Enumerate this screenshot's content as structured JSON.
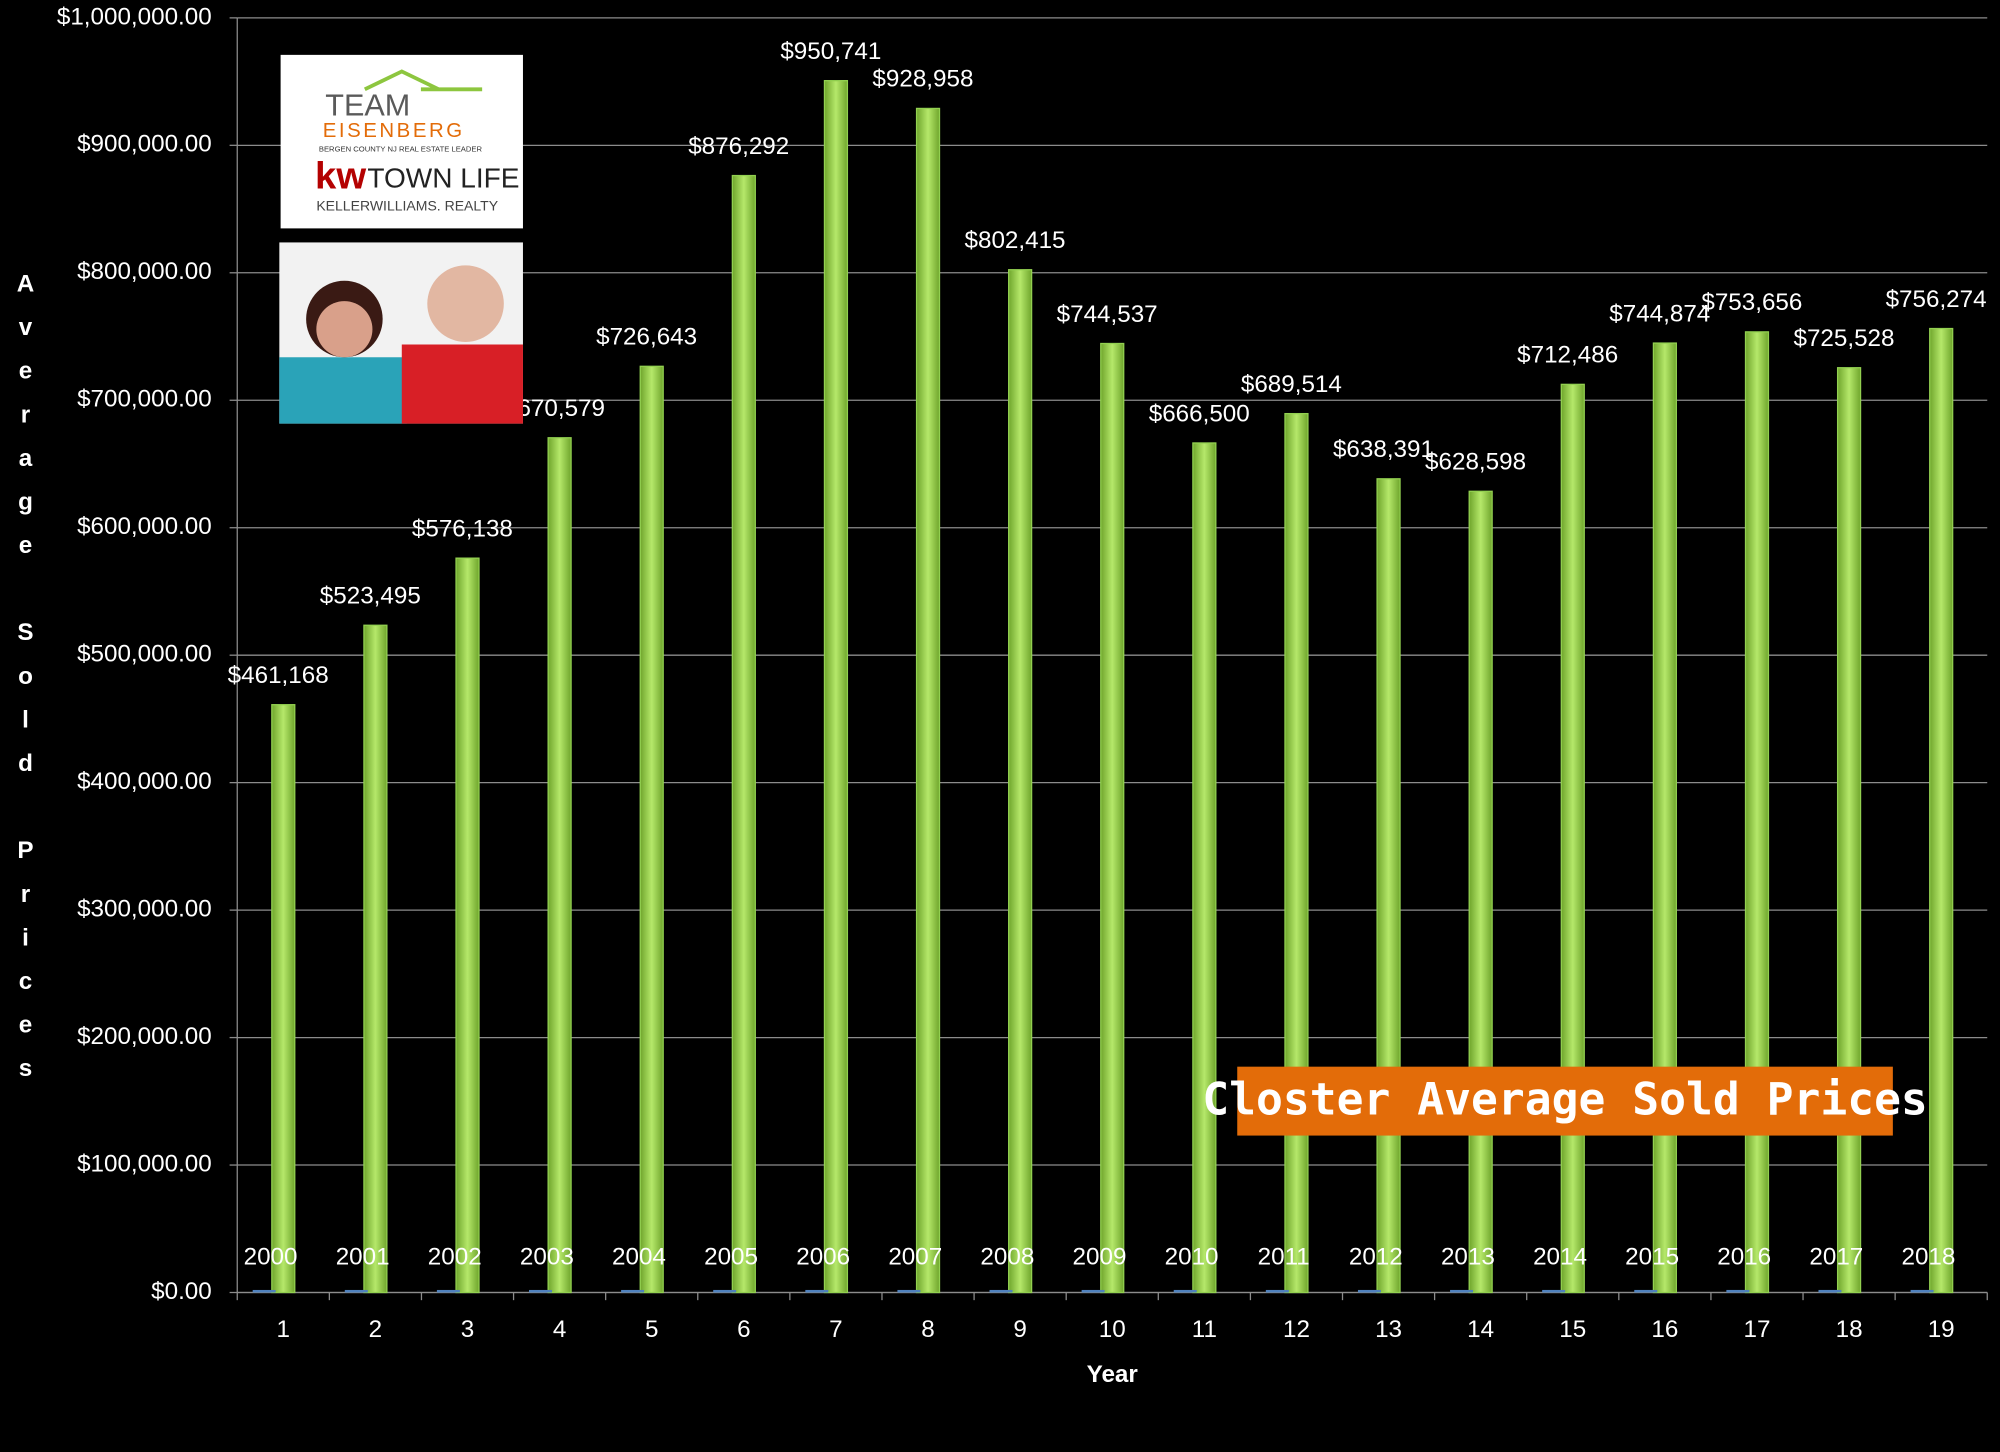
{
  "chart_data": {
    "type": "bar",
    "title": "Closter Average Sold Prices",
    "x_label": "Year",
    "y_label": "Average Sold Prices",
    "categories": [
      "1",
      "2",
      "3",
      "4",
      "5",
      "6",
      "7",
      "8",
      "9",
      "10",
      "11",
      "12",
      "13",
      "14",
      "15",
      "16",
      "17",
      "18",
      "19"
    ],
    "series": [
      {
        "color": "#4f81bd",
        "values": [
          2000,
          2001,
          2002,
          2003,
          2004,
          2005,
          2006,
          2007,
          2008,
          2009,
          2010,
          2011,
          2012,
          2013,
          2014,
          2015,
          2016,
          2017,
          2018
        ]
      },
      {
        "color": "#92d050",
        "values": [
          461168,
          523495,
          576138,
          670579,
          726643,
          876292,
          950741,
          928958,
          802415,
          744537,
          666500,
          689514,
          638391,
          628598,
          712486,
          744874,
          753656,
          725528,
          756274
        ],
        "value_labels": [
          "$461,168",
          "$523,495",
          "$576,138",
          "$670,579",
          "$726,643",
          "$876,292",
          "$950,741",
          "$928,958",
          "$802,415",
          "$744,537",
          "$666,500",
          "$689,514",
          "$638,391",
          "$628,598",
          "$712,486",
          "$744,874",
          "$753,656",
          "$725,528",
          "$756,274"
        ]
      }
    ],
    "ylim": [
      0,
      1000000
    ],
    "yticks": [
      {
        "value": 0,
        "label": "$0.00"
      },
      {
        "value": 100000,
        "label": "$100,000.00"
      },
      {
        "value": 200000,
        "label": "$200,000.00"
      },
      {
        "value": 300000,
        "label": "$300,000.00"
      },
      {
        "value": 400000,
        "label": "$400,000.00"
      },
      {
        "value": 500000,
        "label": "$500,000.00"
      },
      {
        "value": 600000,
        "label": "$600,000.00"
      },
      {
        "value": 700000,
        "label": "$700,000.00"
      },
      {
        "value": 800000,
        "label": "$800,000.00"
      },
      {
        "value": 900000,
        "label": "$900,000.00"
      },
      {
        "value": 1000000,
        "label": "$1,000,000.00"
      }
    ],
    "grid": true
  },
  "logo": {
    "team": "TEAM",
    "name": "EISENBERG",
    "tagline": "BERGEN COUNTY NJ REAL ESTATE LEADER",
    "kw": "kw",
    "office": "TOWN LIFE",
    "brokerage": "KELLERWILLIAMS. REALTY"
  }
}
